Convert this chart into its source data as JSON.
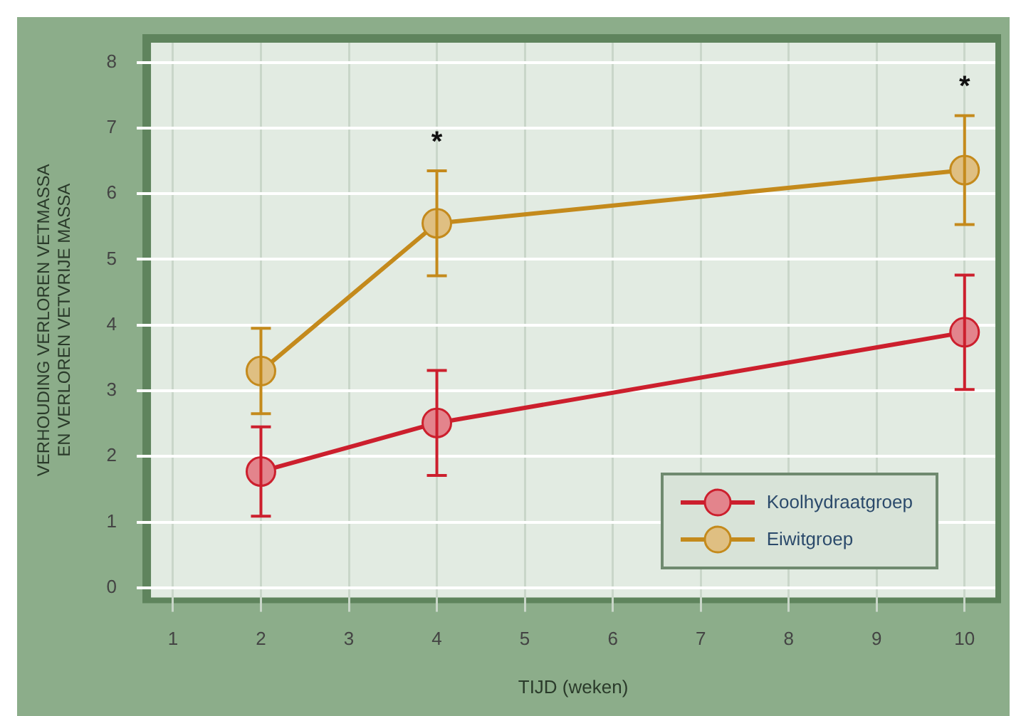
{
  "chart_data": {
    "type": "line",
    "xlabel": "TIJD (weken)",
    "ylabel": "VERHOUDING VERLOREN VETMASSA EN VERLOREN VETVRIJE MASSA",
    "xlim": [
      0.75,
      10.35
    ],
    "xticks": [
      1,
      2,
      3,
      4,
      5,
      6,
      7,
      8,
      9,
      10
    ],
    "ylim": [
      -0.15,
      8.3
    ],
    "yticks": [
      0,
      1,
      2,
      3,
      4,
      5,
      6,
      7,
      8
    ],
    "series": [
      {
        "name": "Koolhydraatgroep",
        "color": "#cc1f2d",
        "x": [
          2,
          4,
          10
        ],
        "values": [
          1.77,
          2.51,
          3.89
        ],
        "errors": [
          0.68,
          0.8,
          0.87
        ]
      },
      {
        "name": "Eiwitgroep",
        "color": "#c48a1c",
        "x": [
          2,
          4,
          10
        ],
        "values": [
          3.3,
          5.55,
          6.36
        ],
        "errors": [
          0.65,
          0.8,
          0.83
        ]
      }
    ],
    "annotations": [
      {
        "text": "*",
        "x": 4,
        "y": 6.35
      },
      {
        "text": "*",
        "x": 10,
        "y": 7.19
      }
    ],
    "grid": true,
    "legend": "bottom right",
    "marker": "circle",
    "line_style": "solid"
  }
}
